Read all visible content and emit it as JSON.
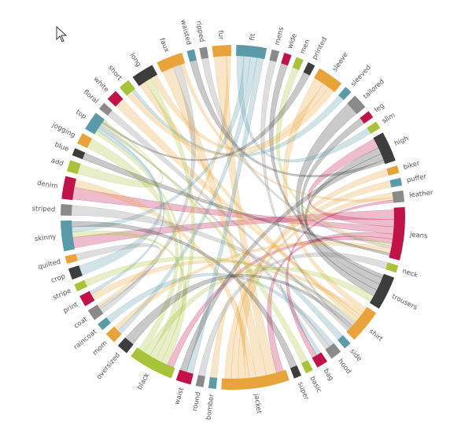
{
  "chart_data": {
    "type": "chord",
    "nodes": [
      {
        "name": "fit",
        "value": 8,
        "color": "#5b9aa9"
      },
      {
        "name": "mens",
        "value": 2,
        "color": "#8a8a8a"
      },
      {
        "name": "wide",
        "value": 2,
        "color": "#c0134a"
      },
      {
        "name": "men",
        "value": 2,
        "color": "#a8c23a"
      },
      {
        "name": "printed",
        "value": 2,
        "color": "#3d3d3d"
      },
      {
        "name": "sleeve",
        "value": 7,
        "color": "#e8a43a"
      },
      {
        "name": "sleeved",
        "value": 2,
        "color": "#5b9aa9"
      },
      {
        "name": "tailored",
        "value": 4,
        "color": "#8a8a8a"
      },
      {
        "name": "leg",
        "value": 2,
        "color": "#c0134a"
      },
      {
        "name": "slim",
        "value": 2,
        "color": "#a8c23a"
      },
      {
        "name": "high",
        "value": 8,
        "color": "#3d3d3d"
      },
      {
        "name": "biker",
        "value": 2,
        "color": "#e8a43a"
      },
      {
        "name": "puffer",
        "value": 2,
        "color": "#5b9aa9"
      },
      {
        "name": "leather",
        "value": 3,
        "color": "#8a8a8a"
      },
      {
        "name": "jeans",
        "value": 14,
        "color": "#c0134a"
      },
      {
        "name": "neck",
        "value": 2,
        "color": "#a8c23a"
      },
      {
        "name": "trousers",
        "value": 9,
        "color": "#3d3d3d"
      },
      {
        "name": "shirt",
        "value": 9,
        "color": "#e8a43a"
      },
      {
        "name": "side",
        "value": 2,
        "color": "#5b9aa9"
      },
      {
        "name": "hood",
        "value": 3,
        "color": "#8a8a8a"
      },
      {
        "name": "bag",
        "value": 3,
        "color": "#c0134a"
      },
      {
        "name": "basic",
        "value": 2,
        "color": "#a8c23a"
      },
      {
        "name": "super",
        "value": 2,
        "color": "#3d3d3d"
      },
      {
        "name": "jacket",
        "value": 18,
        "color": "#e8a43a"
      },
      {
        "name": "bomber",
        "value": 2,
        "color": "#5b9aa9"
      },
      {
        "name": "round",
        "value": 2,
        "color": "#8a8a8a"
      },
      {
        "name": "waist",
        "value": 4,
        "color": "#c0134a"
      },
      {
        "name": "black",
        "value": 12,
        "color": "#a8c23a"
      },
      {
        "name": "oversized",
        "value": 3,
        "color": "#3d3d3d"
      },
      {
        "name": "mom",
        "value": 3,
        "color": "#e8a43a"
      },
      {
        "name": "raincoat",
        "value": 2,
        "color": "#5b9aa9"
      },
      {
        "name": "coat",
        "value": 3,
        "color": "#8a8a8a"
      },
      {
        "name": "print",
        "value": 3,
        "color": "#c0134a"
      },
      {
        "name": "stripe",
        "value": 2,
        "color": "#a8c23a"
      },
      {
        "name": "crop",
        "value": 3,
        "color": "#3d3d3d"
      },
      {
        "name": "quilted",
        "value": 2,
        "color": "#e8a43a"
      },
      {
        "name": "skinny",
        "value": 8,
        "color": "#5b9aa9"
      },
      {
        "name": "striped",
        "value": 3,
        "color": "#8a8a8a"
      },
      {
        "name": "denim",
        "value": 6,
        "color": "#c0134a"
      },
      {
        "name": "add",
        "value": 3,
        "color": "#a8c23a"
      },
      {
        "name": "blue",
        "value": 2,
        "color": "#3d3d3d"
      },
      {
        "name": "jogging",
        "value": 3,
        "color": "#e8a43a"
      },
      {
        "name": "top",
        "value": 5,
        "color": "#5b9aa9"
      },
      {
        "name": "floral",
        "value": 2,
        "color": "#8a8a8a"
      },
      {
        "name": "white",
        "value": 3,
        "color": "#c0134a"
      },
      {
        "name": "short",
        "value": 3,
        "color": "#a8c23a"
      },
      {
        "name": "long",
        "value": 6,
        "color": "#3d3d3d"
      },
      {
        "name": "faux",
        "value": 7,
        "color": "#e8a43a"
      },
      {
        "name": "waisted",
        "value": 2,
        "color": "#5b9aa9"
      },
      {
        "name": "ripped",
        "value": 2,
        "color": "#8a8a8a"
      },
      {
        "name": "fur",
        "value": 5,
        "color": "#e8a43a"
      }
    ],
    "links": [
      {
        "source": "jeans",
        "target": "skinny",
        "value": 4
      },
      {
        "source": "jeans",
        "target": "high",
        "value": 3
      },
      {
        "source": "jeans",
        "target": "denim",
        "value": 3
      },
      {
        "source": "jeans",
        "target": "jacket",
        "value": 2
      },
      {
        "source": "jeans",
        "target": "black",
        "value": 2
      },
      {
        "source": "jacket",
        "target": "fur",
        "value": 3
      },
      {
        "source": "jacket",
        "target": "faux",
        "value": 3
      },
      {
        "source": "jacket",
        "target": "denim",
        "value": 2
      },
      {
        "source": "jacket",
        "target": "bomber",
        "value": 1
      },
      {
        "source": "jacket",
        "target": "leather",
        "value": 2
      },
      {
        "source": "jacket",
        "target": "biker",
        "value": 2
      },
      {
        "source": "jacket",
        "target": "puffer",
        "value": 2
      },
      {
        "source": "shirt",
        "target": "sleeve",
        "value": 3
      },
      {
        "source": "shirt",
        "target": "print",
        "value": 2
      },
      {
        "source": "shirt",
        "target": "white",
        "value": 2
      },
      {
        "source": "shirt",
        "target": "long",
        "value": 2
      },
      {
        "source": "trousers",
        "target": "wide",
        "value": 1
      },
      {
        "source": "trousers",
        "target": "leg",
        "value": 2
      },
      {
        "source": "trousers",
        "target": "high",
        "value": 2
      },
      {
        "source": "trousers",
        "target": "tailored",
        "value": 2
      },
      {
        "source": "black",
        "target": "skinny",
        "value": 2
      },
      {
        "source": "black",
        "target": "long",
        "value": 2
      },
      {
        "source": "black",
        "target": "top",
        "value": 2
      },
      {
        "source": "black",
        "target": "trousers",
        "value": 2
      },
      {
        "source": "black",
        "target": "jogging",
        "value": 2
      },
      {
        "source": "fit",
        "target": "slim",
        "value": 2
      },
      {
        "source": "fit",
        "target": "skinny",
        "value": 2
      },
      {
        "source": "fit",
        "target": "mom",
        "value": 2
      },
      {
        "source": "fit",
        "target": "waist",
        "value": 2
      },
      {
        "source": "sleeve",
        "target": "long",
        "value": 2
      },
      {
        "source": "sleeve",
        "target": "short",
        "value": 2
      },
      {
        "source": "sleeved",
        "target": "short",
        "value": 1
      },
      {
        "source": "top",
        "target": "crop",
        "value": 2
      },
      {
        "source": "top",
        "target": "print",
        "value": 1
      },
      {
        "source": "coat",
        "target": "faux",
        "value": 2
      },
      {
        "source": "coat",
        "target": "quilted",
        "value": 1
      },
      {
        "source": "raincoat",
        "target": "hood",
        "value": 1
      },
      {
        "source": "fur",
        "target": "coat",
        "value": 1
      },
      {
        "source": "faux",
        "target": "leather",
        "value": 1
      },
      {
        "source": "high",
        "target": "waist",
        "value": 2
      },
      {
        "source": "high",
        "target": "waisted",
        "value": 1
      },
      {
        "source": "stripe",
        "target": "shirt",
        "value": 1
      },
      {
        "source": "striped",
        "target": "shirt",
        "value": 2
      },
      {
        "source": "round",
        "target": "neck",
        "value": 2
      },
      {
        "source": "hood",
        "target": "top",
        "value": 1
      },
      {
        "source": "oversized",
        "target": "shirt",
        "value": 2
      },
      {
        "source": "super",
        "target": "skinny",
        "value": 2
      },
      {
        "source": "basic",
        "target": "top",
        "value": 1
      },
      {
        "source": "mens",
        "target": "shirt",
        "value": 1
      },
      {
        "source": "men",
        "target": "jeans",
        "value": 1
      },
      {
        "source": "printed",
        "target": "top",
        "value": 1
      },
      {
        "source": "floral",
        "target": "shirt",
        "value": 1
      },
      {
        "source": "ripped",
        "target": "jeans",
        "value": 1
      },
      {
        "source": "mom",
        "target": "jeans",
        "value": 2
      },
      {
        "source": "blue",
        "target": "jeans",
        "value": 1
      },
      {
        "source": "add",
        "target": "top",
        "value": 1
      },
      {
        "source": "side",
        "target": "bag",
        "value": 1
      },
      {
        "source": "bag",
        "target": "leather",
        "value": 1
      }
    ]
  }
}
